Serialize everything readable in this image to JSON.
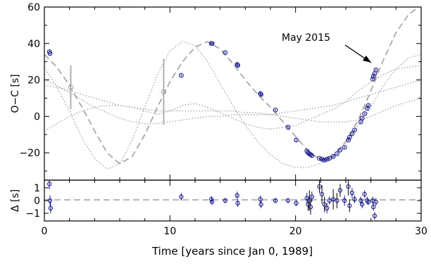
{
  "chart_data": [
    {
      "type": "scatter",
      "ylabel": "O−C [s]",
      "xlim": [
        0,
        30
      ],
      "ylim": [
        -35,
        60
      ],
      "yticks": [
        -20,
        0,
        20,
        40,
        60
      ],
      "annotation": {
        "text": "May 2015",
        "x": 26.2,
        "y": 24
      },
      "series": [
        {
          "style": "archival-gray",
          "points": [
            {
              "x": 2.1,
              "y": 16,
              "err": 12
            },
            {
              "x": 9.5,
              "y": 13.5,
              "err": 18
            }
          ]
        },
        {
          "style": "blue-circles",
          "points": [
            {
              "x": 0.4,
              "y": 35.5,
              "err": 0.5
            },
            {
              "x": 0.45,
              "y": 34.5,
              "err": 0.5
            },
            {
              "x": 10.9,
              "y": 22.5,
              "err": 0.5
            },
            {
              "x": 13.3,
              "y": 40,
              "err": 0.5
            },
            {
              "x": 13.35,
              "y": 40,
              "err": 0.5
            },
            {
              "x": 14.4,
              "y": 35,
              "err": 0.5
            },
            {
              "x": 15.35,
              "y": 28.5,
              "err": 0.5
            },
            {
              "x": 15.4,
              "y": 28,
              "err": 0.5
            },
            {
              "x": 17.2,
              "y": 12.5,
              "err": 0.5
            },
            {
              "x": 17.25,
              "y": 12,
              "err": 0.5
            },
            {
              "x": 18.4,
              "y": 3.5,
              "err": 0.5
            },
            {
              "x": 19.4,
              "y": -6,
              "err": 0.5
            },
            {
              "x": 20.05,
              "y": -13,
              "err": 0.5
            },
            {
              "x": 20.9,
              "y": -19,
              "err": 0.5
            },
            {
              "x": 21.0,
              "y": -20,
              "err": 0.5
            },
            {
              "x": 21.1,
              "y": -20.5,
              "err": 0.5
            },
            {
              "x": 21.2,
              "y": -21,
              "err": 0.5
            },
            {
              "x": 21.3,
              "y": -21.5,
              "err": 0.5
            },
            {
              "x": 21.9,
              "y": -23,
              "err": 0.5
            },
            {
              "x": 22.1,
              "y": -23.5,
              "err": 0.5
            },
            {
              "x": 22.3,
              "y": -24,
              "err": 0.5
            },
            {
              "x": 22.5,
              "y": -23.5,
              "err": 0.5
            },
            {
              "x": 22.7,
              "y": -23,
              "err": 0.5
            },
            {
              "x": 23.0,
              "y": -22,
              "err": 0.5
            },
            {
              "x": 23.3,
              "y": -20.5,
              "err": 0.5
            },
            {
              "x": 23.55,
              "y": -18.5,
              "err": 0.5
            },
            {
              "x": 23.9,
              "y": -17,
              "err": 0.5
            },
            {
              "x": 24.2,
              "y": -13,
              "err": 0.5
            },
            {
              "x": 24.3,
              "y": -11.5,
              "err": 0.5
            },
            {
              "x": 24.5,
              "y": -9.5,
              "err": 0.5
            },
            {
              "x": 24.7,
              "y": -7.5,
              "err": 0.5
            },
            {
              "x": 25.2,
              "y": -3,
              "err": 0.5
            },
            {
              "x": 25.3,
              "y": -1,
              "err": 0.5
            },
            {
              "x": 25.5,
              "y": 1.5,
              "err": 0.5
            },
            {
              "x": 25.7,
              "y": 4.5,
              "err": 0.5
            },
            {
              "x": 25.8,
              "y": 6,
              "err": 0.5
            },
            {
              "x": 26.15,
              "y": 20.5,
              "err": 0.5
            },
            {
              "x": 26.2,
              "y": 22,
              "err": 0.5
            },
            {
              "x": 26.3,
              "y": 23.5,
              "err": 0.5
            },
            {
              "x": 26.4,
              "y": 25.5,
              "err": 0.5
            }
          ]
        }
      ],
      "models": [
        {
          "style": "dashed",
          "points": [
            [
              0,
              34
            ],
            [
              1,
              27
            ],
            [
              2,
              17
            ],
            [
              3,
              5
            ],
            [
              4,
              -8
            ],
            [
              5,
              -20
            ],
            [
              6,
              -26
            ],
            [
              7,
              -22
            ],
            [
              8,
              -10
            ],
            [
              9,
              5
            ],
            [
              10,
              19
            ],
            [
              11,
              30
            ],
            [
              12,
              38
            ],
            [
              13,
              41
            ],
            [
              14,
              37
            ],
            [
              15,
              29
            ],
            [
              16,
              20
            ],
            [
              17,
              12
            ],
            [
              18,
              5
            ],
            [
              19,
              -3
            ],
            [
              20,
              -11
            ],
            [
              21,
              -19
            ],
            [
              22,
              -24
            ],
            [
              23,
              -22
            ],
            [
              24,
              -14
            ],
            [
              25,
              -2
            ],
            [
              26,
              14
            ],
            [
              27,
              31
            ],
            [
              28,
              46
            ],
            [
              29,
              56
            ],
            [
              30,
              61
            ]
          ]
        },
        {
          "style": "dotted",
          "points": [
            [
              0,
              27
            ],
            [
              1,
              16
            ],
            [
              2,
              3
            ],
            [
              3,
              -12
            ],
            [
              4,
              -23
            ],
            [
              5,
              -29
            ],
            [
              6,
              -26
            ],
            [
              7,
              -13
            ],
            [
              8,
              5
            ],
            [
              9,
              23
            ],
            [
              10,
              36
            ],
            [
              11,
              41
            ],
            [
              12,
              39
            ],
            [
              13,
              30
            ],
            [
              14,
              18
            ],
            [
              15,
              6
            ],
            [
              16,
              -5
            ],
            [
              17,
              -14
            ],
            [
              18,
              -21
            ],
            [
              19,
              -26
            ],
            [
              20,
              -28
            ],
            [
              21,
              -28
            ],
            [
              22,
              -26
            ],
            [
              23,
              -21
            ],
            [
              24,
              -14
            ],
            [
              25,
              -5
            ],
            [
              26,
              5
            ],
            [
              27,
              17
            ],
            [
              28,
              26
            ],
            [
              29,
              32
            ],
            [
              30,
              34
            ]
          ]
        },
        {
          "style": "dotted",
          "points": [
            [
              0,
              20
            ],
            [
              1,
              17
            ],
            [
              2,
              13
            ],
            [
              3,
              9
            ],
            [
              4,
              5
            ],
            [
              5,
              2
            ],
            [
              6,
              -1
            ],
            [
              7,
              -3
            ],
            [
              8,
              -4
            ],
            [
              9,
              -4
            ],
            [
              10,
              -3
            ],
            [
              11,
              -2
            ],
            [
              12,
              -1
            ],
            [
              13,
              0
            ],
            [
              14,
              0
            ],
            [
              15,
              1
            ],
            [
              16,
              1
            ],
            [
              17,
              1
            ],
            [
              18,
              1
            ],
            [
              19,
              2
            ],
            [
              20,
              3
            ],
            [
              21,
              4
            ],
            [
              22,
              5
            ],
            [
              23,
              6
            ],
            [
              24,
              8
            ],
            [
              25,
              10
            ],
            [
              26,
              12
            ],
            [
              27,
              14
            ],
            [
              28,
              16
            ],
            [
              29,
              18
            ],
            [
              30,
              20
            ]
          ]
        },
        {
          "style": "dotted",
          "points": [
            [
              0,
              -8
            ],
            [
              1,
              -4
            ],
            [
              2,
              0
            ],
            [
              3,
              3
            ],
            [
              4,
              5
            ],
            [
              5,
              6
            ],
            [
              6,
              6
            ],
            [
              7,
              5
            ],
            [
              8,
              3
            ],
            [
              9,
              1
            ],
            [
              10,
              3
            ],
            [
              11,
              6
            ],
            [
              12,
              7
            ],
            [
              13,
              5
            ],
            [
              14,
              2
            ],
            [
              15,
              -1
            ],
            [
              16,
              -4
            ],
            [
              17,
              -6
            ],
            [
              18,
              -7
            ],
            [
              19,
              -6
            ],
            [
              20,
              -5
            ],
            [
              21,
              -2
            ],
            [
              22,
              1
            ],
            [
              23,
              4
            ],
            [
              24,
              8
            ],
            [
              25,
              14
            ],
            [
              26,
              19
            ],
            [
              27,
              23
            ],
            [
              28,
              26
            ],
            [
              29,
              27
            ],
            [
              30,
              28
            ]
          ]
        },
        {
          "style": "dotted",
          "points": [
            [
              0,
              17
            ],
            [
              1,
              16
            ],
            [
              2,
              14
            ],
            [
              3,
              12
            ],
            [
              4,
              10
            ],
            [
              5,
              8
            ],
            [
              6,
              6
            ],
            [
              7,
              5
            ],
            [
              8,
              4
            ],
            [
              9,
              3
            ],
            [
              10,
              3
            ],
            [
              11,
              3
            ],
            [
              12,
              3
            ],
            [
              13,
              3
            ],
            [
              14,
              3
            ],
            [
              15,
              3
            ],
            [
              16,
              2
            ],
            [
              17,
              2
            ],
            [
              18,
              1
            ],
            [
              19,
              0
            ],
            [
              20,
              -1
            ],
            [
              21,
              -2
            ],
            [
              22,
              -3
            ],
            [
              23,
              -3
            ],
            [
              24,
              -3
            ],
            [
              25,
              -2
            ],
            [
              26,
              0
            ],
            [
              27,
              3
            ],
            [
              28,
              6
            ],
            [
              29,
              8
            ],
            [
              30,
              10
            ]
          ]
        }
      ]
    },
    {
      "type": "scatter",
      "ylabel": "Δ [s]",
      "xlabel": "Time [years since Jan 0, 1989]",
      "xlim": [
        0,
        30
      ],
      "ylim": [
        -1.6,
        1.6
      ],
      "yticks": [
        -1,
        0,
        1
      ],
      "ytick_labels": [
        "−1",
        "0",
        "1"
      ],
      "xticks": [
        0,
        10,
        20,
        30
      ],
      "points": [
        {
          "x": 0.4,
          "y": 1.3,
          "err": 0.4
        },
        {
          "x": 0.45,
          "y": 0.0,
          "err": 0.4
        },
        {
          "x": 0.5,
          "y": -0.6,
          "err": 0.4
        },
        {
          "x": 10.9,
          "y": 0.3,
          "err": 0.3
        },
        {
          "x": 13.3,
          "y": 0.1,
          "err": 0.25
        },
        {
          "x": 13.35,
          "y": -0.1,
          "err": 0.25
        },
        {
          "x": 14.4,
          "y": 0.0,
          "err": 0.2
        },
        {
          "x": 15.35,
          "y": 0.4,
          "err": 0.3
        },
        {
          "x": 15.4,
          "y": -0.2,
          "err": 0.3
        },
        {
          "x": 17.2,
          "y": 0.1,
          "err": 0.3
        },
        {
          "x": 17.25,
          "y": -0.3,
          "err": 0.3
        },
        {
          "x": 18.4,
          "y": 0.0,
          "err": 0.2
        },
        {
          "x": 19.4,
          "y": 0.0,
          "err": 0.2
        },
        {
          "x": 20.05,
          "y": -0.2,
          "err": 0.25
        },
        {
          "x": 20.9,
          "y": 0.2,
          "err": 0.4
        },
        {
          "x": 21.0,
          "y": -0.3,
          "err": 0.5
        },
        {
          "x": 21.1,
          "y": 0.0,
          "err": 0.8
        },
        {
          "x": 21.2,
          "y": -0.5,
          "err": 0.6
        },
        {
          "x": 21.3,
          "y": 0.3,
          "err": 0.4
        },
        {
          "x": 21.9,
          "y": 1.1,
          "err": 0.5
        },
        {
          "x": 22.1,
          "y": 0.5,
          "err": 0.7
        },
        {
          "x": 22.3,
          "y": -0.3,
          "err": 0.6
        },
        {
          "x": 22.5,
          "y": -0.6,
          "err": 0.4
        },
        {
          "x": 22.7,
          "y": 0.0,
          "err": 0.3
        },
        {
          "x": 23.0,
          "y": 0.1,
          "err": 0.8
        },
        {
          "x": 23.3,
          "y": 0.0,
          "err": 0.6
        },
        {
          "x": 23.55,
          "y": 0.8,
          "err": 0.5
        },
        {
          "x": 23.9,
          "y": 0.0,
          "err": 0.4
        },
        {
          "x": 24.2,
          "y": 1.1,
          "err": 0.7
        },
        {
          "x": 24.3,
          "y": -0.4,
          "err": 0.5
        },
        {
          "x": 24.5,
          "y": 0.6,
          "err": 0.4
        },
        {
          "x": 24.7,
          "y": 0.1,
          "err": 0.3
        },
        {
          "x": 25.2,
          "y": 0.0,
          "err": 0.3
        },
        {
          "x": 25.3,
          "y": -0.3,
          "err": 0.3
        },
        {
          "x": 25.5,
          "y": 0.5,
          "err": 0.3
        },
        {
          "x": 25.7,
          "y": 0.0,
          "err": 0.3
        },
        {
          "x": 25.8,
          "y": -0.1,
          "err": 0.25
        },
        {
          "x": 26.15,
          "y": 0.0,
          "err": 0.3
        },
        {
          "x": 26.2,
          "y": -0.5,
          "err": 0.3
        },
        {
          "x": 26.3,
          "y": -1.2,
          "err": 0.3
        },
        {
          "x": 26.4,
          "y": -0.1,
          "err": 0.3
        }
      ]
    }
  ]
}
